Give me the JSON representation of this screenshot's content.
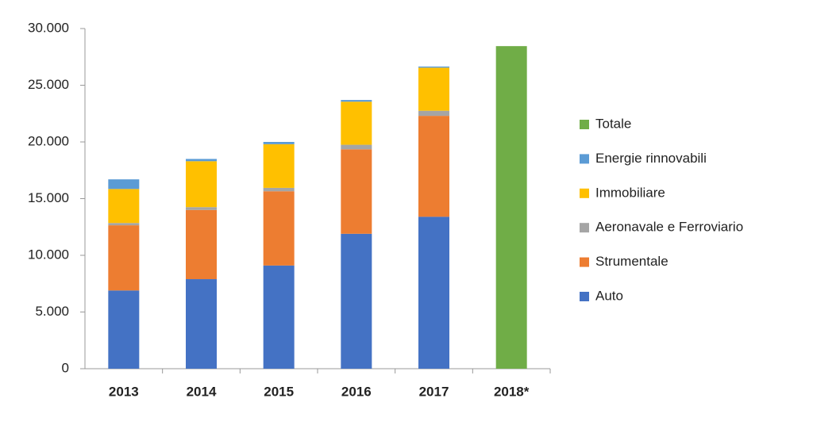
{
  "chart_data": {
    "type": "stacked-bar",
    "categories": [
      "2013",
      "2014",
      "2015",
      "2016",
      "2017",
      "2018*"
    ],
    "series": [
      {
        "name": "Auto",
        "color": "#4472c4",
        "values": [
          6900,
          7900,
          9100,
          11900,
          13400,
          null
        ]
      },
      {
        "name": "Strumentale",
        "color": "#ed7d31",
        "values": [
          5750,
          6100,
          6550,
          7450,
          8900,
          null
        ]
      },
      {
        "name": "Aeronavale e Ferroviario",
        "color": "#a5a5a5",
        "values": [
          200,
          250,
          300,
          400,
          450,
          null
        ]
      },
      {
        "name": "Immobiliare",
        "color": "#ffc000",
        "values": [
          3000,
          4050,
          3850,
          3800,
          3800,
          null
        ]
      },
      {
        "name": "Energie rinnovabili",
        "color": "#5b9bd5",
        "values": [
          850,
          200,
          200,
          150,
          100,
          null
        ]
      },
      {
        "name": "Totale",
        "color": "#70ad47",
        "values": [
          null,
          null,
          null,
          null,
          null,
          28450
        ]
      }
    ],
    "ylim": [
      0,
      30000
    ],
    "yticks": [
      0,
      {
        "value": 5000,
        "label": "5.000"
      },
      {
        "value": 10000,
        "label": "10.000"
      },
      {
        "value": 15000,
        "label": "15.000"
      },
      {
        "value": 20000,
        "label": "20.000"
      },
      {
        "value": 25000,
        "label": "25.000"
      },
      {
        "value": 30000,
        "label": "30.000"
      }
    ],
    "legend": "right"
  }
}
